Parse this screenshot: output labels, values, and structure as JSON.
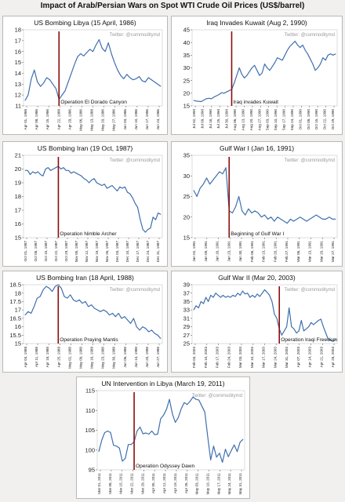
{
  "page": {
    "title": "Impact of Arab/Persian Wars on Spot WTI Crude Oil Prices (US$/barrel)"
  },
  "chart_data": [
    {
      "type": "line",
      "title": "US Bombing Libya (15 April, 1986)",
      "watermark": "Twitter: @commoditymd",
      "event_label": "Operation El Dorado Canyon",
      "event_index": 11,
      "ylim": [
        11,
        18
      ],
      "yticks": [
        11,
        12,
        13,
        14,
        15,
        16,
        17,
        18
      ],
      "xticks": [
        "Apr 01, 1986",
        "Apr 08, 1986",
        "Apr 15, 1986",
        "Apr 22, 1986",
        "Apr 29, 1986",
        "May 06, 1986",
        "May 13, 1986",
        "May 20, 1986",
        "May 27, 1986",
        "Jun 03, 1986",
        "Jun 10, 1986",
        "Jun 17, 1986",
        "Jun 24, 1986"
      ],
      "series": [
        {
          "color": "#3f6fae",
          "values": [
            11.5,
            12.0,
            13.5,
            14.3,
            13.2,
            12.8,
            13.1,
            13.6,
            13.4,
            13.0,
            12.6,
            11.6,
            12.0,
            12.4,
            13.2,
            14.0,
            14.8,
            15.5,
            15.8,
            15.6,
            15.9,
            16.2,
            16.0,
            16.6,
            17.1,
            16.3,
            16.0,
            16.8,
            15.8,
            15.0,
            14.3,
            13.8,
            13.5,
            13.9,
            13.6,
            13.4,
            13.5,
            13.7,
            13.3,
            13.2,
            13.6,
            13.4,
            13.2,
            13.0,
            12.8
          ]
        }
      ]
    },
    {
      "type": "line",
      "title": "Iraq Invades Kuwait (Aug 2, 1990)",
      "watermark": "Twitter: @commoditymd",
      "event_label": "Iraq invades Kuwait",
      "event_index": 15,
      "ylim": [
        15,
        45
      ],
      "yticks": [
        15,
        20,
        25,
        30,
        35,
        40,
        45
      ],
      "xticks": [
        "Jul 02, 1990",
        "Jul 09, 1990",
        "Jul 16, 1990",
        "Jul 25, 1990",
        "Jul 30, 1990",
        "Aug 06, 1990",
        "Aug 13, 1990",
        "Aug 20, 1990",
        "Aug 27, 1990",
        "Sep 03, 1990",
        "Sep 10, 1990",
        "Sep 17, 1990",
        "Sep 24, 1990",
        "Oct 01, 1990",
        "Oct 08, 1990",
        "Oct 15, 1990",
        "Oct 22, 1990",
        "Oct 29, 1990"
      ],
      "series": [
        {
          "color": "#3f6fae",
          "values": [
            17.2,
            16.9,
            16.8,
            16.7,
            17.3,
            17.8,
            18.0,
            17.8,
            18.5,
            19.0,
            19.5,
            20.2,
            20.0,
            20.5,
            21.0,
            21.5,
            24.0,
            27.0,
            30.0,
            27.5,
            26.0,
            27.0,
            28.5,
            30.0,
            31.0,
            29.0,
            27.0,
            28.0,
            31.5,
            30.0,
            29.0,
            30.5,
            32.0,
            34.0,
            33.5,
            33.0,
            35.0,
            37.0,
            38.5,
            39.5,
            40.5,
            39.0,
            38.0,
            39.0,
            37.0,
            35.5,
            33.5,
            31.5,
            29.0,
            30.0,
            31.5,
            34.0,
            33.0,
            35.0,
            35.5,
            35.0,
            35.5
          ]
        }
      ]
    },
    {
      "type": "line",
      "title": "US Bombing Iran (19 Oct, 1987)",
      "watermark": "Twitter: @commoditymd",
      "event_label": "Operation Nimble Archer",
      "event_index": 13,
      "ylim": [
        15,
        21
      ],
      "yticks": [
        15,
        16,
        17,
        18,
        19,
        20,
        21
      ],
      "xticks": [
        "Oct 01, 1987",
        "Oct 08, 1987",
        "Oct 15, 1987",
        "Oct 22, 1987",
        "Oct 29, 1987",
        "Nov 05, 1987",
        "Nov 12, 1987",
        "Nov 19, 1987",
        "Nov 26, 1987",
        "Dec 03, 1987",
        "Dec 10, 1987",
        "Dec 17, 1987",
        "Dec 24, 1987",
        "Dec 31, 1987"
      ],
      "series": [
        {
          "color": "#3f6fae",
          "values": [
            19.9,
            19.9,
            19.6,
            19.8,
            19.7,
            19.8,
            19.6,
            19.5,
            20.0,
            20.1,
            19.9,
            20.0,
            20.1,
            20.2,
            20.0,
            20.1,
            19.9,
            19.9,
            19.7,
            19.8,
            19.7,
            19.6,
            19.5,
            19.3,
            19.2,
            19.0,
            19.2,
            19.3,
            19.0,
            18.9,
            18.8,
            18.9,
            18.6,
            18.7,
            18.8,
            18.6,
            18.4,
            18.7,
            18.6,
            18.7,
            18.3,
            18.2,
            17.9,
            17.5,
            17.2,
            16.3,
            15.6,
            15.4,
            15.6,
            15.7,
            16.5,
            16.3,
            16.8,
            16.7
          ]
        }
      ]
    },
    {
      "type": "line",
      "title": "Gulf War I (Jan 16, 1991)",
      "watermark": "Twitter: @commoditymd",
      "event_label": "Beginning of Gulf War I",
      "event_index": 11,
      "ylim": [
        15,
        35
      ],
      "yticks": [
        15,
        20,
        25,
        30,
        35
      ],
      "xticks": [
        "Jan 02, 1991",
        "Jan 09, 1991",
        "Jan 16, 1991",
        "Jan 23, 1991",
        "Jan 30, 1991",
        "Feb 06, 1991",
        "Feb 13, 1991",
        "Feb 20, 1991",
        "Feb 27, 1991",
        "Mar 06, 1991",
        "Mar 13, 1991",
        "Mar 20, 1991",
        "Mar 27, 1991"
      ],
      "series": [
        {
          "color": "#3f6fae",
          "values": [
            26.5,
            25.0,
            27.0,
            28.0,
            29.5,
            28.0,
            29.0,
            30.0,
            31.0,
            30.5,
            32.0,
            21.5,
            21.0,
            22.5,
            25.0,
            21.5,
            20.5,
            22.0,
            21.0,
            21.5,
            21.0,
            20.0,
            20.5,
            19.5,
            20.0,
            19.0,
            20.0,
            19.5,
            19.0,
            18.5,
            19.5,
            19.0,
            19.5,
            20.0,
            19.5,
            19.0,
            19.5,
            20.0,
            20.5,
            20.0,
            19.5,
            19.5,
            20.0,
            19.5,
            19.5
          ]
        }
      ]
    },
    {
      "type": "line",
      "title": "US Bombing Iran (18 April, 1988)",
      "watermark": "Twitter: @commoditymd",
      "event_label": "Operation Praying Mantis",
      "event_index": 11,
      "ylim": [
        15,
        18.5
      ],
      "yticks": [
        15,
        15.5,
        16,
        16.5,
        17,
        17.5,
        18,
        18.5
      ],
      "xticks": [
        "Apr 04, 1988",
        "Apr 11, 1988",
        "Apr 18, 1988",
        "Apr 25, 1988",
        "May 02, 1988",
        "May 09, 1988",
        "May 16, 1988",
        "May 23, 1988",
        "May 30, 1988",
        "Jun 06, 1988",
        "Jun 13, 1988",
        "Jun 20, 1988",
        "Jun 27, 1988"
      ],
      "series": [
        {
          "color": "#3f6fae",
          "values": [
            16.7,
            16.9,
            16.8,
            17.2,
            17.7,
            17.8,
            18.2,
            18.4,
            18.3,
            18.1,
            18.4,
            18.5,
            18.3,
            17.8,
            17.7,
            17.9,
            17.6,
            17.5,
            17.6,
            17.4,
            17.5,
            17.2,
            17.3,
            17.1,
            17.0,
            16.9,
            17.0,
            16.9,
            16.7,
            16.8,
            16.6,
            16.8,
            16.5,
            16.6,
            16.4,
            16.2,
            16.5,
            16.0,
            15.8,
            16.0,
            15.9,
            15.7,
            15.8,
            15.6,
            15.5,
            15.3
          ]
        }
      ]
    },
    {
      "type": "line",
      "title": "Gulf War II (Mar 20, 2003)",
      "watermark": "Twitter: @commoditymd",
      "event_label": "Operation Iraqi Freedom",
      "event_index": 35,
      "ylim": [
        25,
        39
      ],
      "yticks": [
        25,
        27,
        29,
        31,
        33,
        35,
        37,
        39
      ],
      "xticks": [
        "Feb 03, 2003",
        "Feb 10, 2003",
        "Feb 17, 2003",
        "Feb 24, 2003",
        "Mar 03, 2003",
        "Mar 10, 2003",
        "Mar 17, 2003",
        "Mar 24, 2003",
        "Mar 31, 2003",
        "Apr 07, 2003",
        "Apr 14, 2003",
        "Apr 21, 2003",
        "Apr 28, 2003"
      ],
      "series": [
        {
          "color": "#3f6fae",
          "values": [
            33.0,
            34.0,
            33.5,
            35.0,
            34.5,
            36.0,
            35.0,
            36.5,
            36.0,
            37.0,
            36.5,
            36.0,
            36.5,
            36.0,
            36.3,
            36.0,
            36.5,
            36.2,
            37.0,
            36.5,
            37.5,
            36.8,
            37.0,
            36.0,
            36.5,
            36.0,
            36.8,
            36.2,
            37.0,
            37.8,
            37.2,
            36.5,
            35.0,
            32.0,
            31.0,
            28.5,
            27.0,
            28.0,
            29.0,
            33.5,
            29.0,
            28.5,
            27.5,
            28.0,
            30.5,
            28.0,
            28.5,
            29.0,
            30.0,
            29.5,
            30.0,
            30.5,
            30.8,
            29.0,
            27.5,
            26.0,
            25.8,
            25.5,
            26.0
          ]
        }
      ]
    },
    {
      "type": "line",
      "title": "UN Intervention in Libya (March 19, 2011)",
      "watermark": "Twitter: @commoditymd",
      "event_label": "Operation Odyssey Dawn",
      "event_index": 12,
      "ylim": [
        95,
        115
      ],
      "yticks": [
        95,
        100,
        105,
        110,
        115
      ],
      "xticks": [
        "Mar 01, 2011",
        "Mar 08, 2011",
        "Mar 15, 2011",
        "Mar 22, 2011",
        "Mar 29, 2011",
        "Apr 05, 2011",
        "Apr 12, 2011",
        "Apr 19, 2011",
        "Apr 26, 2011",
        "May 03, 2011",
        "May 10, 2011",
        "May 17, 2011",
        "May 24, 2011",
        "May 31, 2011"
      ],
      "series": [
        {
          "color": "#3f6fae",
          "values": [
            99.6,
            102.5,
            104.4,
            104.8,
            104.4,
            101.2,
            101.0,
            100.5,
            97.2,
            97.9,
            101.4,
            101.4,
            102.1,
            104.8,
            105.8,
            104.1,
            104.3,
            104.0,
            104.8,
            103.9,
            104.0,
            107.9,
            108.8,
            110.3,
            112.8,
            109.1,
            107.0,
            108.2,
            110.4,
            112.0,
            111.5,
            112.3,
            113.4,
            112.8,
            112.6,
            111.1,
            109.6,
            103.4,
            97.5,
            101.0,
            98.2,
            99.2,
            96.9,
            100.2,
            98.3,
            99.9,
            101.3,
            99.6,
            102.0,
            102.7
          ]
        }
      ]
    }
  ]
}
